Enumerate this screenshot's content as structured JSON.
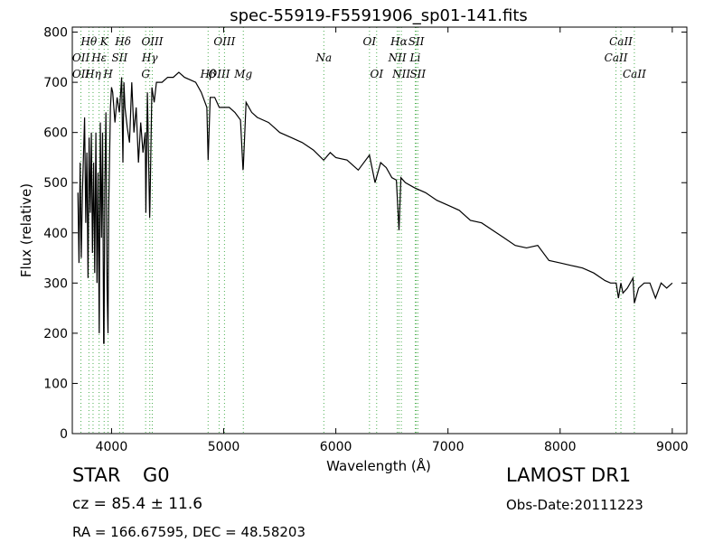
{
  "chart_data": {
    "type": "line",
    "title": "spec-55919-F5591906_sp01-141.fits",
    "xlabel": "Wavelength (Å)",
    "ylabel": "Flux (relative)",
    "xlim": [
      3650,
      9130
    ],
    "ylim": [
      0,
      810
    ],
    "xticks": [
      4000,
      5000,
      6000,
      7000,
      8000,
      9000
    ],
    "yticks": [
      0,
      100,
      200,
      300,
      400,
      500,
      600,
      700,
      800
    ],
    "grid": false,
    "legend": "none",
    "line_color": "#000000",
    "marker_color": "#4caf50",
    "spectrum": {
      "x": [
        3700,
        3710,
        3720,
        3730,
        3740,
        3760,
        3770,
        3780,
        3790,
        3800,
        3810,
        3820,
        3830,
        3840,
        3850,
        3860,
        3870,
        3880,
        3890,
        3900,
        3910,
        3920,
        3930,
        3933,
        3940,
        3950,
        3960,
        3968,
        3975,
        3990,
        4000,
        4010,
        4030,
        4050,
        4070,
        4090,
        4101,
        4110,
        4120,
        4140,
        4160,
        4180,
        4200,
        4220,
        4240,
        4260,
        4280,
        4300,
        4306,
        4320,
        4340,
        4342,
        4360,
        4380,
        4400,
        4450,
        4500,
        4550,
        4600,
        4650,
        4700,
        4750,
        4800,
        4850,
        4861,
        4880,
        4920,
        4960,
        5000,
        5050,
        5100,
        5150,
        5172,
        5175,
        5200,
        5250,
        5300,
        5400,
        5500,
        5600,
        5700,
        5800,
        5890,
        5893,
        5950,
        6000,
        6100,
        6200,
        6300,
        6350,
        6400,
        6450,
        6500,
        6540,
        6563,
        6580,
        6620,
        6700,
        6800,
        6900,
        7000,
        7100,
        7200,
        7300,
        7400,
        7500,
        7600,
        7700,
        7800,
        7900,
        8000,
        8100,
        8200,
        8300,
        8400,
        8450,
        8500,
        8520,
        8542,
        8560,
        8600,
        8650,
        8662,
        8700,
        8750,
        8800,
        8850,
        8900,
        8950,
        9000
      ],
      "y": [
        480,
        340,
        540,
        350,
        480,
        630,
        420,
        560,
        310,
        590,
        440,
        600,
        360,
        540,
        320,
        600,
        300,
        520,
        200,
        620,
        390,
        600,
        180,
        180,
        490,
        640,
        290,
        200,
        450,
        650,
        690,
        680,
        620,
        670,
        640,
        710,
        540,
        700,
        650,
        610,
        580,
        700,
        600,
        650,
        540,
        620,
        560,
        600,
        440,
        680,
        430,
        450,
        690,
        660,
        700,
        700,
        710,
        710,
        720,
        710,
        705,
        700,
        680,
        650,
        545,
        670,
        670,
        650,
        650,
        650,
        640,
        625,
        525,
        530,
        660,
        640,
        630,
        620,
        600,
        590,
        580,
        565,
        545,
        545,
        560,
        550,
        545,
        525,
        555,
        500,
        540,
        530,
        510,
        505,
        405,
        510,
        500,
        490,
        480,
        465,
        455,
        445,
        425,
        420,
        405,
        390,
        375,
        370,
        375,
        345,
        340,
        335,
        330,
        320,
        305,
        300,
        300,
        270,
        300,
        280,
        290,
        310,
        260,
        290,
        300,
        300,
        270,
        300,
        290,
        300
      ]
    },
    "line_markers_top": [
      {
        "label": "Hθ",
        "x": 3798
      },
      {
        "label": "K",
        "x": 3934
      },
      {
        "label": "Hδ",
        "x": 4102
      },
      {
        "label": "OIII",
        "x": 4363
      },
      {
        "label": "OIII",
        "x": 5007
      },
      {
        "label": "OI",
        "x": 6300
      },
      {
        "label": "Hα",
        "x": 6563
      },
      {
        "label": "SII",
        "x": 6717
      },
      {
        "label": "CaII",
        "x": 8542
      }
    ],
    "line_markers_mid": [
      {
        "label": "OII",
        "x": 3727
      },
      {
        "label": "Hε",
        "x": 3889
      },
      {
        "label": "SII",
        "x": 4072
      },
      {
        "label": "Hγ",
        "x": 4341
      },
      {
        "label": "Na",
        "x": 5893
      },
      {
        "label": "NII",
        "x": 6548
      },
      {
        "label": "Li",
        "x": 6708
      },
      {
        "label": "CaII",
        "x": 8498
      }
    ],
    "line_markers_low": [
      {
        "label": "OII",
        "x": 3727
      },
      {
        "label": "Hη",
        "x": 3835
      },
      {
        "label": "H",
        "x": 3969
      },
      {
        "label": "G",
        "x": 4304
      },
      {
        "label": "Hβ",
        "x": 4861
      },
      {
        "label": "OIII",
        "x": 4959
      },
      {
        "label": "Mg",
        "x": 5175
      },
      {
        "label": "OI",
        "x": 6364
      },
      {
        "label": "NII",
        "x": 6584
      },
      {
        "label": "SII",
        "x": 6731
      },
      {
        "label": "CaII",
        "x": 8662
      }
    ]
  },
  "info": {
    "class_label": "STAR",
    "subclass": "G0",
    "survey": "LAMOST DR1",
    "cz": "cz = 85.4  ± 11.6",
    "obs_date": "Obs-Date:20111223",
    "coords": "RA = 166.67595, DEC = 48.58203"
  }
}
